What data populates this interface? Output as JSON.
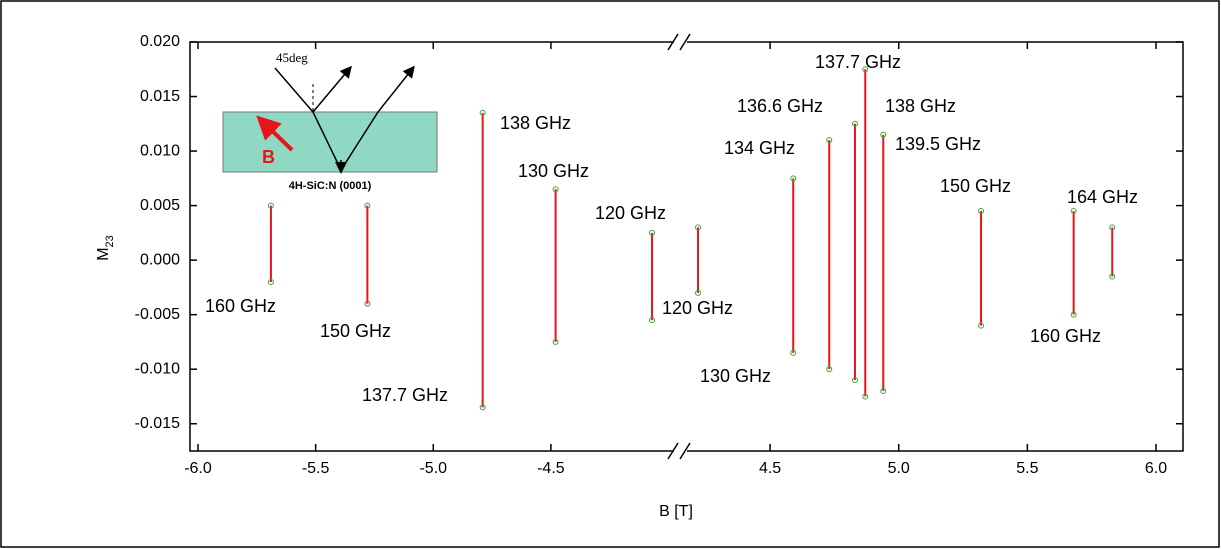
{
  "chart_data": {
    "type": "resonance",
    "x_label": "B [T]",
    "y_label": "M",
    "y_label_sub": "23",
    "ylim": [
      -0.0175,
      0.02
    ],
    "yticks": [
      {
        "value": 0.02,
        "label": "0.020"
      },
      0.015,
      {
        "value": 0.01,
        "label": "0.010"
      },
      0.005,
      {
        "value": 0,
        "label": "0.000"
      },
      -0.005,
      {
        "value": -0.01,
        "label": "-0.010"
      },
      -0.015
    ],
    "x_segments": [
      {
        "xlim": [
          -6.034,
          -3.981
        ],
        "xticks": [
          {
            "value": -6,
            "label": "-6.0"
          },
          -5.5,
          {
            "value": -5,
            "label": "-5.0"
          },
          -4.5
        ]
      },
      {
        "xlim": [
          4.181,
          6.105
        ],
        "xticks": [
          4.5,
          {
            "value": 5,
            "label": "5.0"
          },
          5.5,
          {
            "value": 6,
            "label": "6.0"
          }
        ]
      }
    ],
    "line_color": "#e8141b",
    "marker_color": "#3aa63a",
    "resonances": {
      "x": [
        -5.69,
        -5.28,
        -4.79,
        -4.48,
        -4.07,
        4.22,
        4.59,
        4.73,
        4.83,
        4.87,
        4.94,
        5.32,
        5.68,
        5.83
      ],
      "low": [
        -0.002,
        -0.004,
        -0.0135,
        -0.0075,
        -0.0055,
        -0.003,
        -0.0085,
        -0.01,
        -0.011,
        -0.0125,
        -0.012,
        -0.006,
        -0.005,
        -0.0015
      ],
      "high": [
        0.005,
        0.005,
        0.0135,
        0.0065,
        0.0025,
        0.003,
        0.0075,
        0.011,
        0.0125,
        0.0175,
        0.0115,
        0.0045,
        0.0045,
        0.003
      ]
    },
    "annotations": [
      "160 GHz",
      "150 GHz",
      "137.7 GHz",
      "138 GHz",
      "130 GHz",
      "120 GHz",
      "120 GHz",
      "130 GHz",
      "134 GHz",
      "136.6 GHz",
      "137.7 GHz",
      "138 GHz",
      "139.5 GHz",
      "150 GHz",
      "164 GHz",
      "160 GHz"
    ],
    "inset": {
      "angle_label": "45deg",
      "field_label": "B",
      "sample_label": "4H-SiC:N (0001)"
    }
  }
}
